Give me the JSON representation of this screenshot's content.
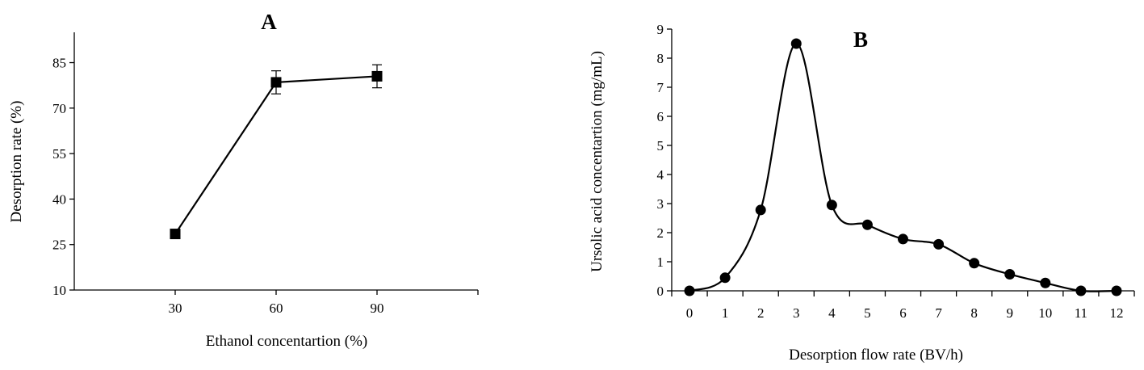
{
  "chart_data": [
    {
      "type": "line",
      "panel_label": "A",
      "xlabel": "Ethanol concentartion (%)",
      "ylabel": "Desorption rate (%)",
      "x": [
        30,
        60,
        90
      ],
      "xlim": [
        0,
        120
      ],
      "xticks": [
        30,
        60,
        90
      ],
      "ylim": [
        10,
        95
      ],
      "yticks": [
        10,
        25,
        40,
        55,
        70,
        85
      ],
      "series": [
        {
          "values": [
            28.5,
            78.5,
            80.5
          ],
          "errors": [
            0,
            3.8,
            3.8
          ],
          "marker": "square"
        }
      ],
      "grid": false,
      "legend": "none"
    },
    {
      "type": "line",
      "panel_label": "B",
      "xlabel": "Desorption flow rate (BV/h)",
      "ylabel": "Ursolic acid concentartion (mg/mL)",
      "x": [
        0,
        1,
        2,
        3,
        4,
        5,
        6,
        7,
        8,
        9,
        10,
        11,
        12
      ],
      "xlim": [
        -0.5,
        12.5
      ],
      "xticks": [
        0,
        1,
        2,
        3,
        4,
        5,
        6,
        7,
        8,
        9,
        10,
        11,
        12
      ],
      "ylim": [
        0,
        9
      ],
      "yticks": [
        0,
        1,
        2,
        3,
        4,
        5,
        6,
        7,
        8,
        9
      ],
      "series": [
        {
          "values": [
            0,
            0.45,
            2.78,
            8.5,
            2.95,
            2.27,
            1.78,
            1.6,
            0.95,
            0.57,
            0.27,
            0,
            0
          ],
          "marker": "circle",
          "smooth": true
        }
      ],
      "grid": false,
      "legend": "none"
    }
  ]
}
